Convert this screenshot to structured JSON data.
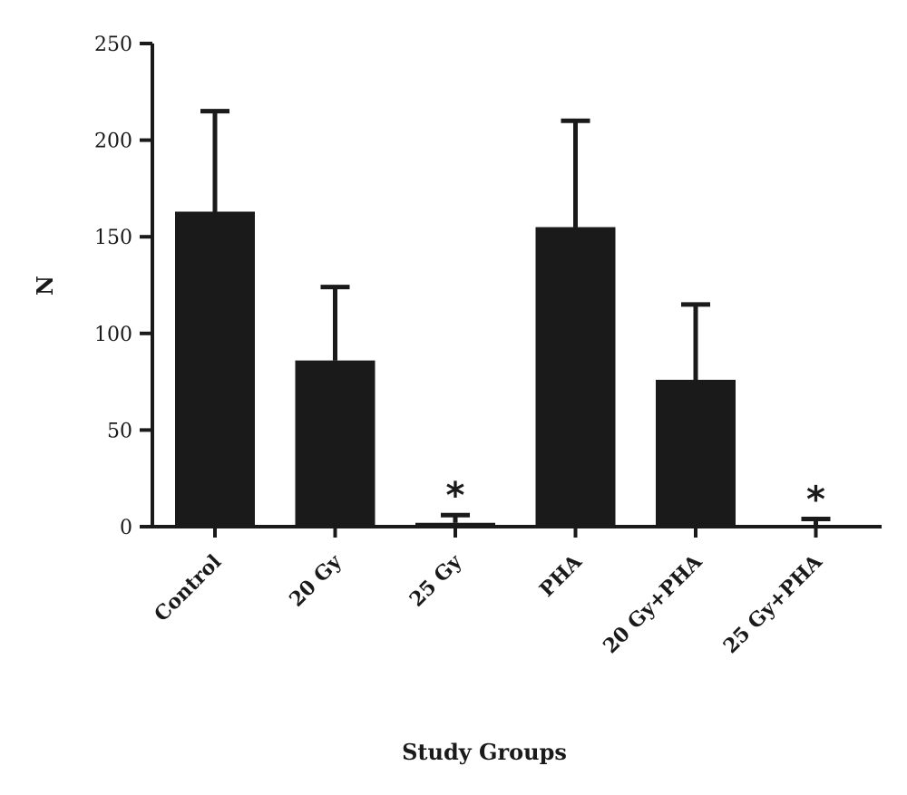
{
  "chart_data": {
    "type": "bar",
    "categories": [
      "Control",
      "20 Gy",
      "25 Gy",
      "PHA",
      "20 Gy+PHA",
      "25 Gy+PHA"
    ],
    "values": [
      163,
      86,
      2,
      155,
      76,
      0
    ],
    "error_upper": [
      215,
      124,
      6,
      210,
      115,
      4
    ],
    "significance": [
      "",
      "",
      "*",
      "",
      "",
      "*"
    ],
    "title": "",
    "xlabel": "Study Groups",
    "ylabel": "N",
    "ylim": [
      0,
      250
    ],
    "yticks": [
      0,
      50,
      100,
      150,
      200,
      250
    ],
    "ytick_labels": [
      "0",
      "50",
      "100",
      "150",
      "200",
      "250"
    ],
    "bar_color": "#1a1a1a",
    "grid": false,
    "legend": "none"
  }
}
